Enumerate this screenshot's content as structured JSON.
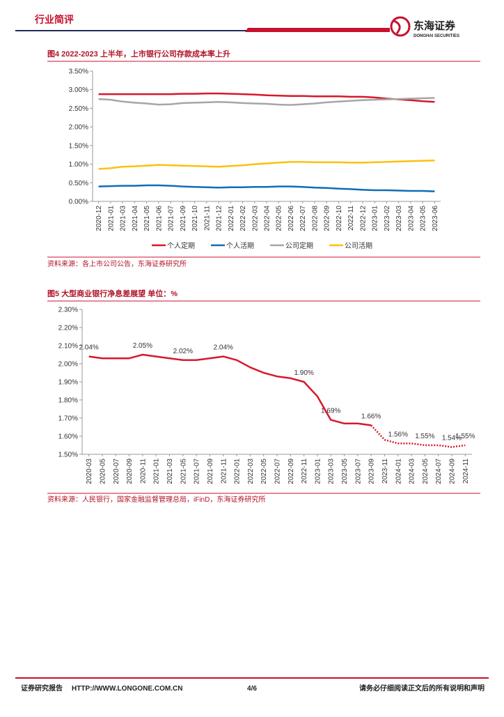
{
  "header": {
    "section": "行业简评",
    "logo_cn": "东海证券",
    "logo_en": "DONGHAI SECURITIES"
  },
  "chart_data": [
    {
      "type": "line",
      "title": "图4  2022-2023 上半年，上市银行公司存款成本率上升",
      "categories": [
        "2020-12",
        "2021-01",
        "2021-03",
        "2021-04",
        "2021-05",
        "2021-06",
        "2021-07",
        "2021-09",
        "2021-10",
        "2021-11",
        "2021-12",
        "2022-01",
        "2022-02",
        "2022-03",
        "2022-04",
        "2022-05",
        "2022-06",
        "2022-07",
        "2022-08",
        "2022-09",
        "2022-10",
        "2022-11",
        "2022-12",
        "2023-01",
        "2023-02",
        "2023-03",
        "2023-04",
        "2023-05",
        "2023-06"
      ],
      "series": [
        {
          "name": "个人定期",
          "color": "#d7182a",
          "values": [
            2.88,
            2.88,
            2.88,
            2.88,
            2.88,
            2.88,
            2.88,
            2.89,
            2.89,
            2.9,
            2.9,
            2.89,
            2.88,
            2.87,
            2.85,
            2.84,
            2.83,
            2.83,
            2.82,
            2.82,
            2.82,
            2.81,
            2.81,
            2.79,
            2.76,
            2.74,
            2.72,
            2.69,
            2.67
          ]
        },
        {
          "name": "个人活期",
          "color": "#0f6db8",
          "values": [
            0.4,
            0.41,
            0.42,
            0.42,
            0.43,
            0.43,
            0.42,
            0.4,
            0.39,
            0.38,
            0.37,
            0.38,
            0.38,
            0.39,
            0.39,
            0.4,
            0.4,
            0.39,
            0.37,
            0.36,
            0.34,
            0.33,
            0.31,
            0.3,
            0.3,
            0.29,
            0.28,
            0.28,
            0.27
          ]
        },
        {
          "name": "公司定期",
          "color": "#a6a6a6",
          "values": [
            2.75,
            2.73,
            2.68,
            2.65,
            2.63,
            2.6,
            2.61,
            2.64,
            2.65,
            2.66,
            2.67,
            2.66,
            2.64,
            2.63,
            2.62,
            2.6,
            2.59,
            2.61,
            2.63,
            2.66,
            2.68,
            2.7,
            2.72,
            2.73,
            2.74,
            2.75,
            2.76,
            2.77,
            2.78
          ]
        },
        {
          "name": "公司活期",
          "color": "#fdc010",
          "values": [
            0.87,
            0.89,
            0.93,
            0.94,
            0.96,
            0.98,
            0.97,
            0.96,
            0.95,
            0.94,
            0.93,
            0.95,
            0.97,
            1.0,
            1.02,
            1.04,
            1.06,
            1.06,
            1.05,
            1.05,
            1.05,
            1.04,
            1.04,
            1.05,
            1.06,
            1.07,
            1.08,
            1.09,
            1.1
          ]
        }
      ],
      "ylim": [
        0,
        3.5
      ],
      "yticks": [
        {
          "value": 0,
          "label": "0.00%"
        },
        {
          "value": 0.5,
          "label": "0.50%"
        },
        {
          "value": 1,
          "label": "1.00%"
        },
        {
          "value": 1.5,
          "label": "1.50%"
        },
        {
          "value": 2,
          "label": "2.00%"
        },
        {
          "value": 2.5,
          "label": "2.50%"
        },
        {
          "value": 3,
          "label": "3.00%"
        },
        {
          "value": 3.5,
          "label": "3.50%"
        }
      ],
      "grid": false,
      "legend": "bottom"
    },
    {
      "type": "line",
      "title": "图5  大型商业银行净息差展望 单位：%",
      "categories": [
        "2020-03",
        "2020-05",
        "2020-07",
        "2020-09",
        "2020-11",
        "2021-01",
        "2021-03",
        "2021-05",
        "2021-07",
        "2021-09",
        "2021-11",
        "2022-01",
        "2022-03",
        "2022-05",
        "2022-07",
        "2022-09",
        "2022-11",
        "2023-01",
        "2023-03",
        "2023-05",
        "2023-07",
        "2023-09",
        "2023-11",
        "2024-01",
        "2024-03",
        "2024-05",
        "2024-07",
        "2024-09",
        "2024-11"
      ],
      "series": [
        {
          "color": "#d7182a",
          "style": "solid",
          "values": [
            2.04,
            2.03,
            2.03,
            2.03,
            2.05,
            2.04,
            2.03,
            2.02,
            2.02,
            2.03,
            2.04,
            2.02,
            1.98,
            1.95,
            1.93,
            1.92,
            1.9,
            1.82,
            1.69,
            1.67,
            1.67,
            1.66,
            null,
            null,
            null,
            null,
            null,
            null,
            null
          ],
          "value_labels": [
            "2.04%",
            null,
            null,
            null,
            "2.05%",
            null,
            null,
            "2.02%",
            null,
            null,
            "2.04%",
            null,
            null,
            null,
            null,
            null,
            "1.90%",
            null,
            "1.69%",
            null,
            null,
            "1.66%",
            null,
            null,
            null,
            null,
            null,
            null,
            null
          ]
        },
        {
          "color": "#d7182a",
          "style": "dotted",
          "values": [
            null,
            null,
            null,
            null,
            null,
            null,
            null,
            null,
            null,
            null,
            null,
            null,
            null,
            null,
            null,
            null,
            null,
            null,
            null,
            null,
            null,
            1.66,
            1.58,
            1.56,
            1.56,
            1.55,
            1.55,
            1.54,
            1.55
          ],
          "value_labels": [
            null,
            null,
            null,
            null,
            null,
            null,
            null,
            null,
            null,
            null,
            null,
            null,
            null,
            null,
            null,
            null,
            null,
            null,
            null,
            null,
            null,
            null,
            null,
            "1.56%",
            null,
            "1.55%",
            null,
            "1.54%",
            "1.55%"
          ]
        }
      ],
      "ylim": [
        1.5,
        2.3
      ],
      "yticks": [
        {
          "value": 1.5,
          "label": "1.50%"
        },
        {
          "value": 1.6,
          "label": "1.60%"
        },
        {
          "value": 1.7,
          "label": "1.70%"
        },
        {
          "value": 1.8,
          "label": "1.80%"
        },
        {
          "value": 1.9,
          "label": "1.90%"
        },
        {
          "value": 2.0,
          "label": "2.00%"
        },
        {
          "value": 2.1,
          "label": "2.10%"
        },
        {
          "value": 2.2,
          "label": "2.20%"
        },
        {
          "value": 2.3,
          "label": "2.30%"
        }
      ],
      "grid": false
    }
  ],
  "sources": [
    "资料来源：各上市公司公告，东海证券研究所",
    "资料来源：人民银行，国家金融监督管理总局，iFinD，东海证券研究所"
  ],
  "footer": {
    "left": "证券研究报告",
    "url": "HTTP://WWW.LONGONE.COM.CN",
    "page": "4/6",
    "disclaimer": "请务必仔细阅读正文后的所有说明和声明"
  }
}
